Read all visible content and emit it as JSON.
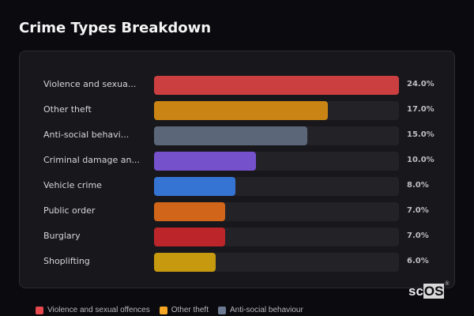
{
  "page": {
    "title": "Crime Types Breakdown"
  },
  "chart_data": {
    "type": "bar",
    "orientation": "horizontal",
    "title": "Crime Types Breakdown",
    "xlabel": "",
    "ylabel": "",
    "value_format": "percent",
    "xlim": [
      0,
      24
    ],
    "grid": false,
    "legend_position": "bottom",
    "categories": [
      "Violence and sexual offences",
      "Other theft",
      "Anti-social behaviour",
      "Criminal damage and arson",
      "Vehicle crime",
      "Public order",
      "Burglary",
      "Shoplifting"
    ],
    "display_labels": [
      "Violence and sexua...",
      "Other theft",
      "Anti-social behavi...",
      "Criminal damage an...",
      "Vehicle crime",
      "Public order",
      "Burglary",
      "Shoplifting"
    ],
    "values": [
      24.0,
      17.0,
      15.0,
      10.0,
      8.0,
      7.0,
      7.0,
      6.0
    ],
    "value_labels": [
      "24.0%",
      "17.0%",
      "15.0%",
      "10.0%",
      "8.0%",
      "7.0%",
      "7.0%",
      "6.0%"
    ],
    "colors": [
      "#cc3f41",
      "#c98414",
      "#5b6778",
      "#7552cc",
      "#3574d2",
      "#d1661b",
      "#bc2529",
      "#c6990e"
    ]
  },
  "legend": [
    {
      "label": "Violence and sexual offences",
      "color": "#e5484d"
    },
    {
      "label": "Other theft",
      "color": "#f5a623"
    },
    {
      "label": "Anti-social behaviour",
      "color": "#6b7a90"
    }
  ],
  "logo": {
    "prefix": "sc",
    "highlight": "OS",
    "mark": "®"
  }
}
